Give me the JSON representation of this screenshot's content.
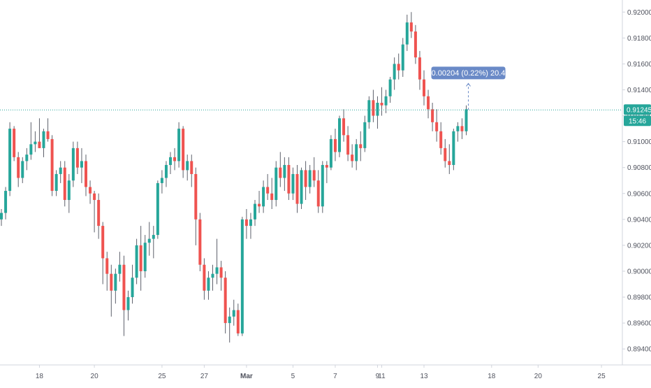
{
  "colors": {
    "up": "#26a69a",
    "down": "#ef5350",
    "wick": "#5d606b",
    "axis_text": "#50535e",
    "axis_line": "#d1d4dc",
    "price_line": "#26a69a",
    "measure_bg": "#6a8ac7",
    "measure_text": "#ffffff",
    "label_text": "#ffffff"
  },
  "last_price_label": "0.91245",
  "countdown_label": "15:46",
  "measure_label": "0.00204 (0.22%) 20.4",
  "chart_data": {
    "type": "candlestick",
    "ylim": [
      0.8932,
      0.9205
    ],
    "yticks": [
      "0.92000",
      "0.91800",
      "0.91600",
      "0.91400",
      "0.91200",
      "0.91000",
      "0.90800",
      "0.90600",
      "0.90400",
      "0.90200",
      "0.90000",
      "0.89800",
      "0.89600",
      "0.89400"
    ],
    "xticks": [
      {
        "label": "18",
        "bar": 9,
        "bold": false
      },
      {
        "label": "20",
        "bar": 22,
        "bold": false
      },
      {
        "label": "25",
        "bar": 38,
        "bold": false
      },
      {
        "label": "27",
        "bar": 48,
        "bold": false
      },
      {
        "label": "Mar",
        "bar": 58,
        "bold": true
      },
      {
        "label": "5",
        "bar": 69,
        "bold": false
      },
      {
        "label": "7",
        "bar": 79,
        "bold": false
      },
      {
        "label": "9",
        "bar": 89,
        "bold": false
      },
      {
        "label": "11",
        "bar": 90,
        "bold": false
      },
      {
        "label": "13",
        "bar": 100,
        "bold": false
      },
      {
        "label": "18",
        "bar": 116,
        "bold": false
      },
      {
        "label": "20",
        "bar": 127,
        "bold": false
      },
      {
        "label": "25",
        "bar": 142,
        "bold": false
      }
    ],
    "last_price": 0.91245,
    "candles": [
      [
        0.904,
        0.9048,
        0.9035,
        0.9045
      ],
      [
        0.9045,
        0.9065,
        0.904,
        0.9062
      ],
      [
        0.9062,
        0.9115,
        0.9058,
        0.911
      ],
      [
        0.911,
        0.9112,
        0.9085,
        0.9088
      ],
      [
        0.9088,
        0.9092,
        0.9065,
        0.9072
      ],
      [
        0.9072,
        0.9088,
        0.9068,
        0.9085
      ],
      [
        0.9085,
        0.9095,
        0.9078,
        0.909
      ],
      [
        0.909,
        0.9115,
        0.9086,
        0.9098
      ],
      [
        0.9098,
        0.9108,
        0.9092,
        0.91
      ],
      [
        0.91,
        0.9118,
        0.9095,
        0.9095
      ],
      [
        0.9095,
        0.911,
        0.9088,
        0.9108
      ],
      [
        0.9108,
        0.9118,
        0.91,
        0.9102
      ],
      [
        0.9102,
        0.9105,
        0.9058,
        0.9062
      ],
      [
        0.9062,
        0.9078,
        0.9058,
        0.9075
      ],
      [
        0.9075,
        0.9085,
        0.9068,
        0.908
      ],
      [
        0.908,
        0.9085,
        0.905,
        0.9055
      ],
      [
        0.9055,
        0.9075,
        0.9045,
        0.907
      ],
      [
        0.907,
        0.91,
        0.9065,
        0.9095
      ],
      [
        0.9095,
        0.91,
        0.9075,
        0.908
      ],
      [
        0.908,
        0.9095,
        0.9068,
        0.9085
      ],
      [
        0.9085,
        0.909,
        0.9058,
        0.9065
      ],
      [
        0.9065,
        0.907,
        0.9052,
        0.906
      ],
      [
        0.906,
        0.9062,
        0.903,
        0.9055
      ],
      [
        0.9055,
        0.906,
        0.9025,
        0.9035
      ],
      [
        0.9035,
        0.9038,
        0.899,
        0.901
      ],
      [
        0.901,
        0.9015,
        0.8985,
        0.8998
      ],
      [
        0.8998,
        0.9005,
        0.8965,
        0.8985
      ],
      [
        0.8985,
        0.9002,
        0.8975,
        0.8998
      ],
      [
        0.8998,
        0.9015,
        0.8992,
        0.9005
      ],
      [
        0.9005,
        0.9012,
        0.895,
        0.897
      ],
      [
        0.897,
        0.8985,
        0.8962,
        0.898
      ],
      [
        0.898,
        0.9005,
        0.8975,
        0.8995
      ],
      [
        0.8995,
        0.9025,
        0.899,
        0.902
      ],
      [
        0.902,
        0.9035,
        0.8985,
        0.9
      ],
      [
        0.9,
        0.9028,
        0.8995,
        0.9022
      ],
      [
        0.9022,
        0.9038,
        0.9012,
        0.9025
      ],
      [
        0.9025,
        0.9035,
        0.901,
        0.9028
      ],
      [
        0.9028,
        0.907,
        0.9025,
        0.9068
      ],
      [
        0.9068,
        0.9078,
        0.906,
        0.9072
      ],
      [
        0.9072,
        0.9085,
        0.9065,
        0.9082
      ],
      [
        0.9082,
        0.9092,
        0.9075,
        0.9088
      ],
      [
        0.9088,
        0.9095,
        0.9078,
        0.9085
      ],
      [
        0.9085,
        0.9115,
        0.908,
        0.911
      ],
      [
        0.911,
        0.9112,
        0.9072,
        0.9078
      ],
      [
        0.9078,
        0.909,
        0.907,
        0.9085
      ],
      [
        0.9085,
        0.909,
        0.9065,
        0.9075
      ],
      [
        0.9075,
        0.908,
        0.902,
        0.904
      ],
      [
        0.904,
        0.9045,
        0.9,
        0.9005
      ],
      [
        0.9005,
        0.901,
        0.8978,
        0.8985
      ],
      [
        0.8985,
        0.9,
        0.8978,
        0.8995
      ],
      [
        0.8995,
        0.9005,
        0.8985,
        0.8998
      ],
      [
        0.8998,
        0.9025,
        0.899,
        0.9003
      ],
      [
        0.9003,
        0.9008,
        0.8985,
        0.8995
      ],
      [
        0.8995,
        0.9,
        0.8952,
        0.896
      ],
      [
        0.896,
        0.8972,
        0.8945,
        0.8965
      ],
      [
        0.8965,
        0.8978,
        0.8958,
        0.897
      ],
      [
        0.897,
        0.8975,
        0.895,
        0.8952
      ],
      [
        0.8952,
        0.9042,
        0.895,
        0.904
      ],
      [
        0.904,
        0.9048,
        0.9025,
        0.9035
      ],
      [
        0.9035,
        0.9045,
        0.9025,
        0.904
      ],
      [
        0.904,
        0.9055,
        0.9035,
        0.9052
      ],
      [
        0.9052,
        0.9062,
        0.9045,
        0.905
      ],
      [
        0.905,
        0.907,
        0.9045,
        0.9065
      ],
      [
        0.9065,
        0.9075,
        0.9055,
        0.906
      ],
      [
        0.906,
        0.9072,
        0.9048,
        0.9055
      ],
      [
        0.9055,
        0.9085,
        0.905,
        0.908
      ],
      [
        0.908,
        0.9092,
        0.9065,
        0.9072
      ],
      [
        0.9072,
        0.9088,
        0.9062,
        0.9082
      ],
      [
        0.9082,
        0.9088,
        0.9055,
        0.906
      ],
      [
        0.906,
        0.908,
        0.9055,
        0.9075
      ],
      [
        0.9075,
        0.9082,
        0.9045,
        0.9052
      ],
      [
        0.9052,
        0.908,
        0.9048,
        0.9078
      ],
      [
        0.9078,
        0.9085,
        0.9055,
        0.9065
      ],
      [
        0.9065,
        0.9082,
        0.906,
        0.9078
      ],
      [
        0.9078,
        0.9088,
        0.9065,
        0.907
      ],
      [
        0.907,
        0.9078,
        0.9045,
        0.905
      ],
      [
        0.905,
        0.9085,
        0.9045,
        0.9082
      ],
      [
        0.9082,
        0.9085,
        0.9068,
        0.908
      ],
      [
        0.908,
        0.9105,
        0.9078,
        0.9102
      ],
      [
        0.9102,
        0.911,
        0.9085,
        0.9092
      ],
      [
        0.9092,
        0.912,
        0.9088,
        0.9118
      ],
      [
        0.9118,
        0.9125,
        0.91,
        0.9105
      ],
      [
        0.9105,
        0.9112,
        0.9085,
        0.909
      ],
      [
        0.909,
        0.9098,
        0.908,
        0.9085
      ],
      [
        0.9085,
        0.9102,
        0.9078,
        0.9098
      ],
      [
        0.9098,
        0.9108,
        0.9085,
        0.9095
      ],
      [
        0.9095,
        0.912,
        0.9092,
        0.9115
      ],
      [
        0.9115,
        0.9135,
        0.911,
        0.9132
      ],
      [
        0.9132,
        0.914,
        0.9115,
        0.912
      ],
      [
        0.912,
        0.9135,
        0.911,
        0.913
      ],
      [
        0.913,
        0.9142,
        0.912,
        0.9128
      ],
      [
        0.9128,
        0.914,
        0.9122,
        0.9135
      ],
      [
        0.9135,
        0.915,
        0.913,
        0.9148
      ],
      [
        0.9148,
        0.9165,
        0.914,
        0.916
      ],
      [
        0.916,
        0.9168,
        0.9148,
        0.9155
      ],
      [
        0.9155,
        0.918,
        0.915,
        0.9175
      ],
      [
        0.9175,
        0.9198,
        0.917,
        0.9192
      ],
      [
        0.9192,
        0.92,
        0.918,
        0.9185
      ],
      [
        0.9185,
        0.919,
        0.916,
        0.9165
      ],
      [
        0.9165,
        0.917,
        0.914,
        0.9148
      ],
      [
        0.9148,
        0.9155,
        0.9128,
        0.9135
      ],
      [
        0.9135,
        0.914,
        0.9118,
        0.9125
      ],
      [
        0.9125,
        0.913,
        0.9108,
        0.9115
      ],
      [
        0.9115,
        0.9125,
        0.91,
        0.9108
      ],
      [
        0.9108,
        0.9115,
        0.909,
        0.9095
      ],
      [
        0.9095,
        0.9102,
        0.908,
        0.9085
      ],
      [
        0.9085,
        0.9098,
        0.9075,
        0.9082
      ],
      [
        0.9082,
        0.911,
        0.9078,
        0.9108
      ],
      [
        0.9108,
        0.9115,
        0.91,
        0.9112
      ],
      [
        0.9112,
        0.9118,
        0.9102,
        0.9108
      ],
      [
        0.9108,
        0.9128,
        0.9105,
        0.9125
      ]
    ]
  }
}
